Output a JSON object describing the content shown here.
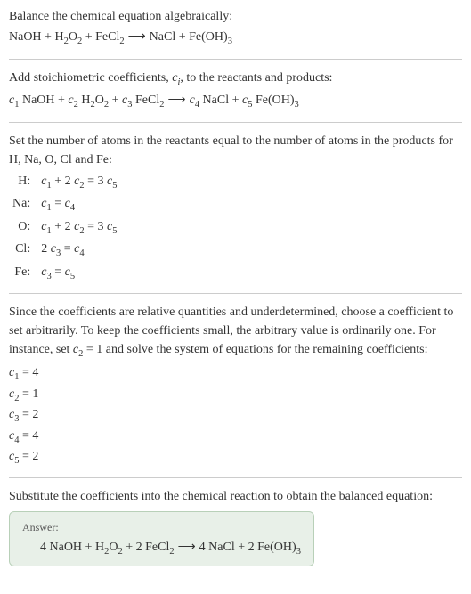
{
  "colors": {
    "text": "#333333",
    "divider": "#cccccc",
    "answer_bg": "#e8f0e8",
    "answer_border": "#b8d0b8",
    "answer_label": "#555555"
  },
  "fonts": {
    "body_family": "Georgia, 'Times New Roman', serif",
    "body_size": 14,
    "answer_label_size": 12
  },
  "section1": {
    "line1": "Balance the chemical equation algebraically:",
    "eq_lhs_1": "NaOH",
    "eq_lhs_2": "H",
    "eq_lhs_2_sub1": "2",
    "eq_lhs_2_mid": "O",
    "eq_lhs_2_sub2": "2",
    "eq_lhs_3": "FeCl",
    "eq_lhs_3_sub": "2",
    "arrow": "⟶",
    "eq_rhs_1": "NaCl",
    "eq_rhs_2": "Fe(OH)",
    "eq_rhs_2_sub": "3",
    "plus": " + "
  },
  "section2": {
    "line1_a": "Add stoichiometric coefficients, ",
    "line1_c": "c",
    "line1_i": "i",
    "line1_b": ", to the reactants and products:",
    "c1": "c",
    "n1": "1",
    "c2": "c",
    "n2": "2",
    "c3": "c",
    "n3": "3",
    "c4": "c",
    "n4": "4",
    "c5": "c",
    "n5": "5",
    "sp1": " NaOH",
    "sp2a": " H",
    "sp2b": "O",
    "sp3": " FeCl",
    "sp4": " NaCl",
    "sp5": " Fe(OH)"
  },
  "section3": {
    "line1": "Set the number of atoms in the reactants equal to the number of atoms in the products for H, Na, O, Cl and Fe:",
    "rows": [
      {
        "label": "H:",
        "c1": "c",
        "s1": "1",
        "t1": " + 2 ",
        "c2": "c",
        "s2": "2",
        "t2": " = 3 ",
        "c3": "c",
        "s3": "5"
      },
      {
        "label": "Na:",
        "c1": "c",
        "s1": "1",
        "t1": " = ",
        "c2": "c",
        "s2": "4",
        "t2": "",
        "c3": "",
        "s3": ""
      },
      {
        "label": "O:",
        "c1": "c",
        "s1": "1",
        "t1": " + 2 ",
        "c2": "c",
        "s2": "2",
        "t2": " = 3 ",
        "c3": "c",
        "s3": "5"
      },
      {
        "label": "Cl:",
        "c1": "2 c",
        "s1": "3",
        "t1": " = ",
        "c2": "c",
        "s2": "4",
        "t2": "",
        "c3": "",
        "s3": ""
      },
      {
        "label": "Fe:",
        "c1": "c",
        "s1": "3",
        "t1": " = ",
        "c2": "c",
        "s2": "5",
        "t2": "",
        "c3": "",
        "s3": ""
      }
    ]
  },
  "section4": {
    "line1": "Since the coefficients are relative quantities and underdetermined, choose a coefficient to set arbitrarily. To keep the coefficients small, the arbitrary value is ordinarily one. For instance, set ",
    "line1_c": "c",
    "line1_s": "2",
    "line1_b": " = 1 and solve the system of equations for the remaining coefficients:",
    "coefs": [
      {
        "c": "c",
        "s": "1",
        "v": " = 4"
      },
      {
        "c": "c",
        "s": "2",
        "v": " = 1"
      },
      {
        "c": "c",
        "s": "3",
        "v": " = 2"
      },
      {
        "c": "c",
        "s": "4",
        "v": " = 4"
      },
      {
        "c": "c",
        "s": "5",
        "v": " = 2"
      }
    ]
  },
  "section5": {
    "line1": "Substitute the coefficients into the chemical reaction to obtain the balanced equation:",
    "answer_label": "Answer:",
    "eq_1": "4 NaOH",
    "eq_2a": "H",
    "eq_2b": "O",
    "eq_3": "2 FeCl",
    "eq_4": "4 NaCl",
    "eq_5": "2 Fe(OH)",
    "sub2": "2",
    "sub3": "3"
  }
}
